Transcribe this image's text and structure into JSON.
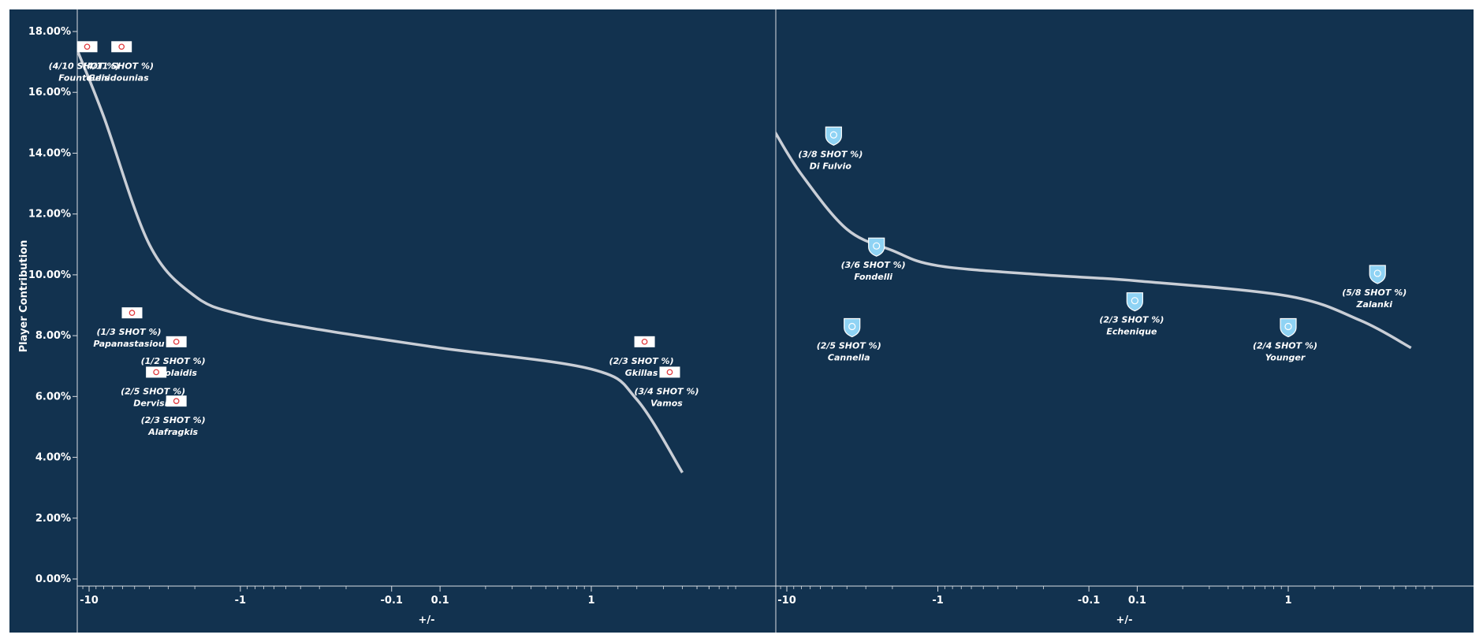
{
  "chart_data": {
    "type": "scatter",
    "ylabel": "Player Contribution",
    "xlabel": "+/-",
    "y_unit": "%",
    "ylim": [
      0,
      18.5
    ],
    "y_ticks": [
      "0.00%",
      "2.00%",
      "4.00%",
      "6.00%",
      "8.00%",
      "10.00%",
      "12.00%",
      "14.00%",
      "16.00%",
      "18.00%"
    ],
    "grid": false,
    "colors": {
      "background": "#12324f",
      "trend": "#c9ced6",
      "team1_badge": "#ffffff",
      "team1_badge_mark": "#e03a3e",
      "team2_badge": "#8fd3f4"
    },
    "panels": [
      {
        "x_ticks": [
          "-10",
          "-1",
          "-0.1",
          "0.1",
          "1"
        ],
        "badge_icon": "red-white-flag-crest-icon",
        "points": [
          {
            "name": "Fountoulis",
            "shot": "(4/10 SHOT %)",
            "x": -10.3,
            "y": 17.5
          },
          {
            "name": "Genidounias",
            "shot": "(4/11 SHOT %)",
            "x": -6.1,
            "y": 17.5
          },
          {
            "name": "Papanastasiou",
            "shot": "(1/3 SHOT %)",
            "x": -5.2,
            "y": 8.75
          },
          {
            "name": "Nikolaidis",
            "shot": "(1/2 SHOT %)",
            "x": -2.65,
            "y": 7.8
          },
          {
            "name": "Dervisis",
            "shot": "(2/5 SHOT %)",
            "x": -3.6,
            "y": 6.8
          },
          {
            "name": "Alafragkis",
            "shot": "(2/3 SHOT %)",
            "x": -2.65,
            "y": 5.85
          },
          {
            "name": "Gkillas",
            "shot": "(2/3 SHOT %)",
            "x": 2.25,
            "y": 7.8
          },
          {
            "name": "Vamos",
            "shot": "(3/4 SHOT %)",
            "x": 3.3,
            "y": 6.8
          }
        ],
        "trend": [
          [
            -12,
            17.4
          ],
          [
            -8,
            15.2
          ],
          [
            -4,
            11.0
          ],
          [
            -2,
            9.3
          ],
          [
            -1,
            8.7
          ],
          [
            -0.3,
            8.2
          ],
          [
            0.1,
            7.6
          ],
          [
            1,
            6.9
          ],
          [
            2,
            5.9
          ],
          [
            4,
            3.5
          ]
        ]
      },
      {
        "x_ticks": [
          "-10",
          "-1",
          "-0.1",
          "0.1",
          "1"
        ],
        "badge_icon": "light-blue-shield-crest-icon",
        "points": [
          {
            "name": "Di Fulvio",
            "shot": "(3/8 SHOT %)",
            "x": -4.9,
            "y": 14.6
          },
          {
            "name": "Fondelli",
            "shot": "(3/6 SHOT %)",
            "x": -2.55,
            "y": 10.95
          },
          {
            "name": "Cannella",
            "shot": "(2/5 SHOT %)",
            "x": -3.7,
            "y": 8.3
          },
          {
            "name": "Echenique",
            "shot": "(2/3 SHOT %)",
            "x": 0.09,
            "y": 9.15
          },
          {
            "name": "Younger",
            "shot": "(2/4 SHOT %)",
            "x": 1.0,
            "y": 8.3
          },
          {
            "name": "Zalanki",
            "shot": "(5/8 SHOT %)",
            "x": 3.9,
            "y": 10.05
          }
        ],
        "trend": [
          [
            -12,
            14.7
          ],
          [
            -8,
            13.3
          ],
          [
            -4,
            11.5
          ],
          [
            -2,
            10.8
          ],
          [
            -1,
            10.3
          ],
          [
            -0.2,
            10.0
          ],
          [
            0.1,
            9.8
          ],
          [
            1,
            9.3
          ],
          [
            3,
            8.5
          ],
          [
            6.5,
            7.6
          ]
        ]
      }
    ]
  }
}
